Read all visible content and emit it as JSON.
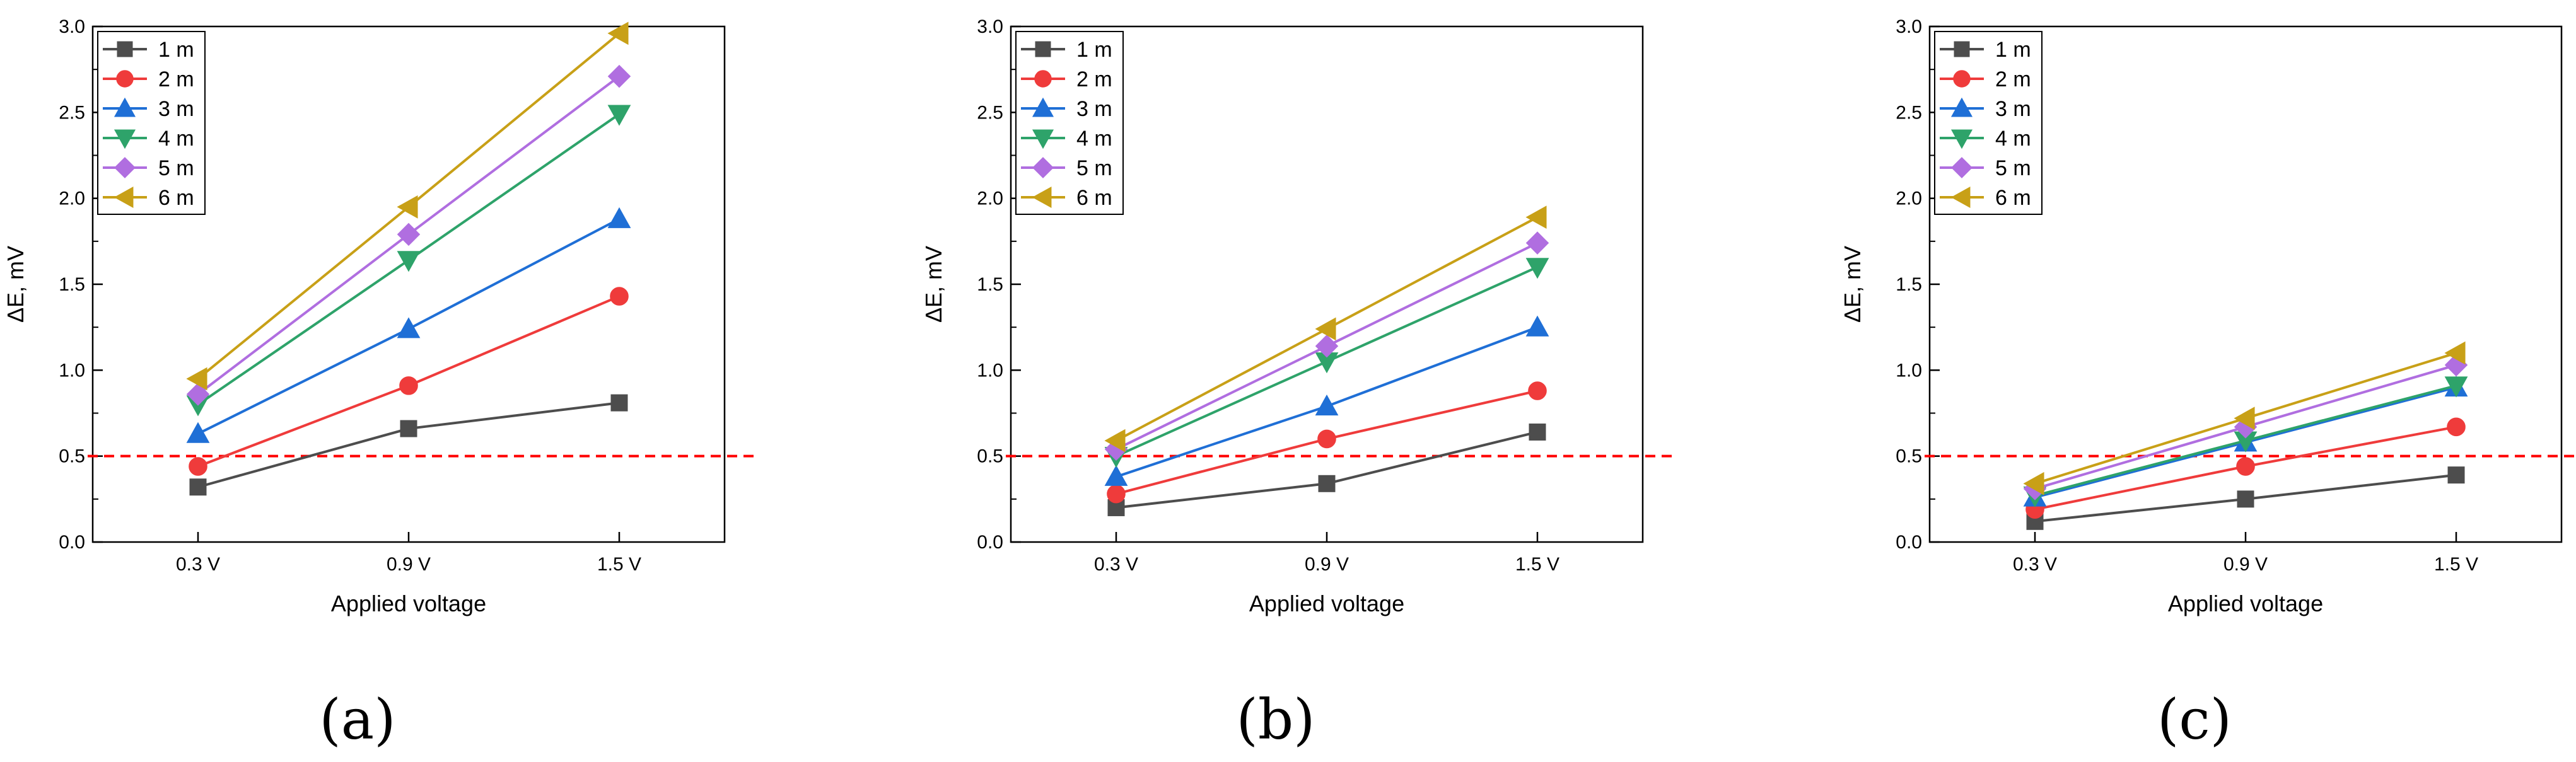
{
  "figure": {
    "captions": [
      "(a)",
      "(b)",
      "(c)"
    ],
    "threshold_color": "#ff0000",
    "series_style": [
      {
        "name": "1 m",
        "color": "#4d4d4d",
        "marker": "square"
      },
      {
        "name": "2 m",
        "color": "#ef3b3b",
        "marker": "circle"
      },
      {
        "name": "3 m",
        "color": "#1f6fd6",
        "marker": "triangle-up"
      },
      {
        "name": "4 m",
        "color": "#2ea36a",
        "marker": "triangle-down"
      },
      {
        "name": "5 m",
        "color": "#b06ee0",
        "marker": "diamond"
      },
      {
        "name": "6 m",
        "color": "#c8a017",
        "marker": "triangle-left"
      }
    ]
  },
  "chart_data": [
    {
      "type": "line",
      "panel": "(a)",
      "xlabel": "Applied voltage",
      "ylabel": "ΔE, mV",
      "categories": [
        "0.3 V",
        "0.9 V",
        "1.5 V"
      ],
      "ylim": [
        0,
        3.0
      ],
      "yticks": [
        "0.0",
        "0.5",
        "1.0",
        "1.5",
        "2.0",
        "2.5",
        "3.0"
      ],
      "threshold": 0.5,
      "legend_position": "top-left",
      "series": [
        {
          "name": "1 m",
          "values": [
            0.32,
            0.66,
            0.81
          ]
        },
        {
          "name": "2 m",
          "values": [
            0.44,
            0.91,
            1.43
          ]
        },
        {
          "name": "3 m",
          "values": [
            0.63,
            1.24,
            1.88
          ]
        },
        {
          "name": "4 m",
          "values": [
            0.8,
            1.64,
            2.49
          ]
        },
        {
          "name": "5 m",
          "values": [
            0.86,
            1.79,
            2.71
          ]
        },
        {
          "name": "6 m",
          "values": [
            0.95,
            1.95,
            2.96
          ]
        }
      ]
    },
    {
      "type": "line",
      "panel": "(b)",
      "xlabel": "Applied voltage",
      "ylabel": "ΔE, mV",
      "categories": [
        "0.3 V",
        "0.9 V",
        "1.5 V"
      ],
      "ylim": [
        0,
        3.0
      ],
      "yticks": [
        "0.0",
        "0.5",
        "1.0",
        "1.5",
        "2.0",
        "2.5",
        "3.0"
      ],
      "threshold": 0.5,
      "legend_position": "top-left",
      "series": [
        {
          "name": "1 m",
          "values": [
            0.2,
            0.34,
            0.64
          ]
        },
        {
          "name": "2 m",
          "values": [
            0.28,
            0.6,
            0.88
          ]
        },
        {
          "name": "3 m",
          "values": [
            0.38,
            0.79,
            1.25
          ]
        },
        {
          "name": "4 m",
          "values": [
            0.5,
            1.05,
            1.6
          ]
        },
        {
          "name": "5 m",
          "values": [
            0.54,
            1.14,
            1.74
          ]
        },
        {
          "name": "6 m",
          "values": [
            0.59,
            1.24,
            1.89
          ]
        }
      ]
    },
    {
      "type": "line",
      "panel": "(c)",
      "xlabel": "Applied voltage",
      "ylabel": "ΔE, mV",
      "categories": [
        "0.3 V",
        "0.9 V",
        "1.5 V"
      ],
      "ylim": [
        0,
        3.0
      ],
      "yticks": [
        "0.0",
        "0.5",
        "1.0",
        "1.5",
        "2.0",
        "2.5",
        "3.0"
      ],
      "threshold": 0.5,
      "legend_position": "top-left",
      "series": [
        {
          "name": "1 m",
          "values": [
            0.12,
            0.25,
            0.39
          ]
        },
        {
          "name": "2 m",
          "values": [
            0.19,
            0.44,
            0.67
          ]
        },
        {
          "name": "3 m",
          "values": [
            0.26,
            0.58,
            0.9
          ]
        },
        {
          "name": "4 m",
          "values": [
            0.27,
            0.59,
            0.91
          ]
        },
        {
          "name": "5 m",
          "values": [
            0.31,
            0.67,
            1.03
          ]
        },
        {
          "name": "6 m",
          "values": [
            0.34,
            0.72,
            1.1
          ]
        }
      ]
    }
  ]
}
